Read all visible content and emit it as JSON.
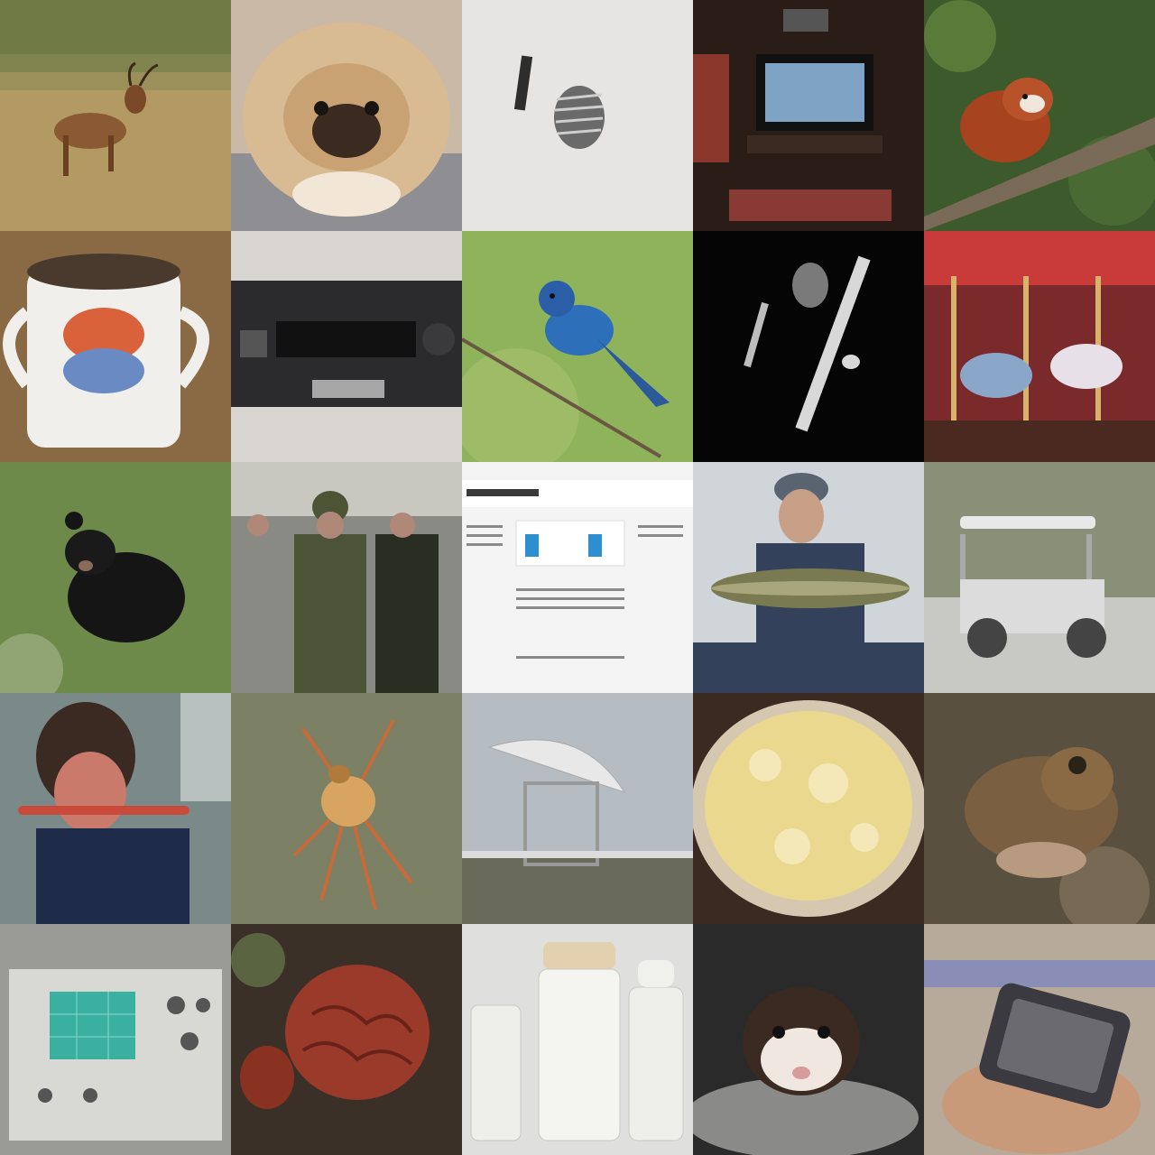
{
  "grid": {
    "rows": 5,
    "columns": 5,
    "tiles": [
      {
        "subject": "hartebeest-in-grassland",
        "colors": {
          "bg": "#b39a62",
          "fg": "#8a5a32",
          "accent": "#6f7a45"
        }
      },
      {
        "subject": "pekingese-dog",
        "colors": {
          "bg": "#c9b9a6",
          "fg": "#d8bb93",
          "accent": "#3a2a20"
        }
      },
      {
        "subject": "metal-screws",
        "colors": {
          "bg": "#e6e5e3",
          "fg": "#6a6a6a",
          "accent": "#2d2d2d"
        }
      },
      {
        "subject": "home-theater-room",
        "colors": {
          "bg": "#2a1c16",
          "fg": "#7fa3c4",
          "accent": "#c94a3a"
        }
      },
      {
        "subject": "red-panda-on-branch",
        "colors": {
          "bg": "#3d5a2c",
          "fg": "#a7431e",
          "accent": "#7a6a58"
        }
      },
      {
        "subject": "coffee-mug",
        "colors": {
          "bg": "#8a6a45",
          "fg": "#f1efec",
          "accent": "#d9623a"
        }
      },
      {
        "subject": "cassette-deck",
        "colors": {
          "bg": "#d8d4cf",
          "fg": "#2b2b2d",
          "accent": "#a7a7a7"
        }
      },
      {
        "subject": "indigo-bunting-bird",
        "colors": {
          "bg": "#8fb35a",
          "fg": "#2d6fb8",
          "accent": "#6a5844"
        }
      },
      {
        "subject": "saxophone-player",
        "colors": {
          "bg": "#050505",
          "fg": "#d8d8d8",
          "accent": "#7a7a7a"
        }
      },
      {
        "subject": "carousel",
        "colors": {
          "bg": "#7a2a2a",
          "fg": "#d8b46a",
          "accent": "#8aa6c8"
        }
      },
      {
        "subject": "black-bear",
        "colors": {
          "bg": "#6d8a4a",
          "fg": "#151515",
          "accent": "#a8b890"
        }
      },
      {
        "subject": "soldiers-group",
        "colors": {
          "bg": "#8a8a84",
          "fg": "#4d5436",
          "accent": "#b08878"
        }
      },
      {
        "subject": "webpage-screenshot",
        "colors": {
          "bg": "#f4f4f4",
          "fg": "#3a3a3a",
          "accent": "#2d8fcf"
        }
      },
      {
        "subject": "man-holding-fish",
        "colors": {
          "bg": "#cfd5d8",
          "fg": "#7a7a52",
          "accent": "#33425a"
        }
      },
      {
        "subject": "golf-cart",
        "colors": {
          "bg": "#8a9078",
          "fg": "#e8e8e8",
          "accent": "#444444"
        }
      },
      {
        "subject": "person-with-harmonica",
        "colors": {
          "bg": "#7a8a88",
          "fg": "#1e2a4a",
          "accent": "#c97a6a"
        }
      },
      {
        "subject": "garden-spider",
        "colors": {
          "bg": "#7c8064",
          "fg": "#d7a55f",
          "accent": "#c86a3a"
        }
      },
      {
        "subject": "radio-telescope",
        "colors": {
          "bg": "#b5bcc2",
          "fg": "#e8e8e8",
          "accent": "#6a6a5a"
        }
      },
      {
        "subject": "mashed-potatoes",
        "colors": {
          "bg": "#3a2a20",
          "fg": "#ead88e",
          "accent": "#d6c8b0"
        }
      },
      {
        "subject": "frog",
        "colors": {
          "bg": "#5a5040",
          "fg": "#7a6040",
          "accent": "#b89a80"
        }
      },
      {
        "subject": "oscilloscope",
        "colors": {
          "bg": "#9a9a96",
          "fg": "#3ab0a0",
          "accent": "#d8d8d4"
        }
      },
      {
        "subject": "morel-mushroom",
        "colors": {
          "bg": "#3a3028",
          "fg": "#9a3a2a",
          "accent": "#6a7a4a"
        }
      },
      {
        "subject": "baby-bottles",
        "colors": {
          "bg": "#dfe0dd",
          "fg": "#eeeeea",
          "accent": "#e7b86a"
        }
      },
      {
        "subject": "ferret",
        "colors": {
          "bg": "#2a2a2a",
          "fg": "#3a2a22",
          "accent": "#f0e8e0"
        }
      },
      {
        "subject": "wristwatch-device",
        "colors": {
          "bg": "#b8aa9a",
          "fg": "#6a6a70",
          "accent": "#c89a7a"
        }
      }
    ]
  }
}
